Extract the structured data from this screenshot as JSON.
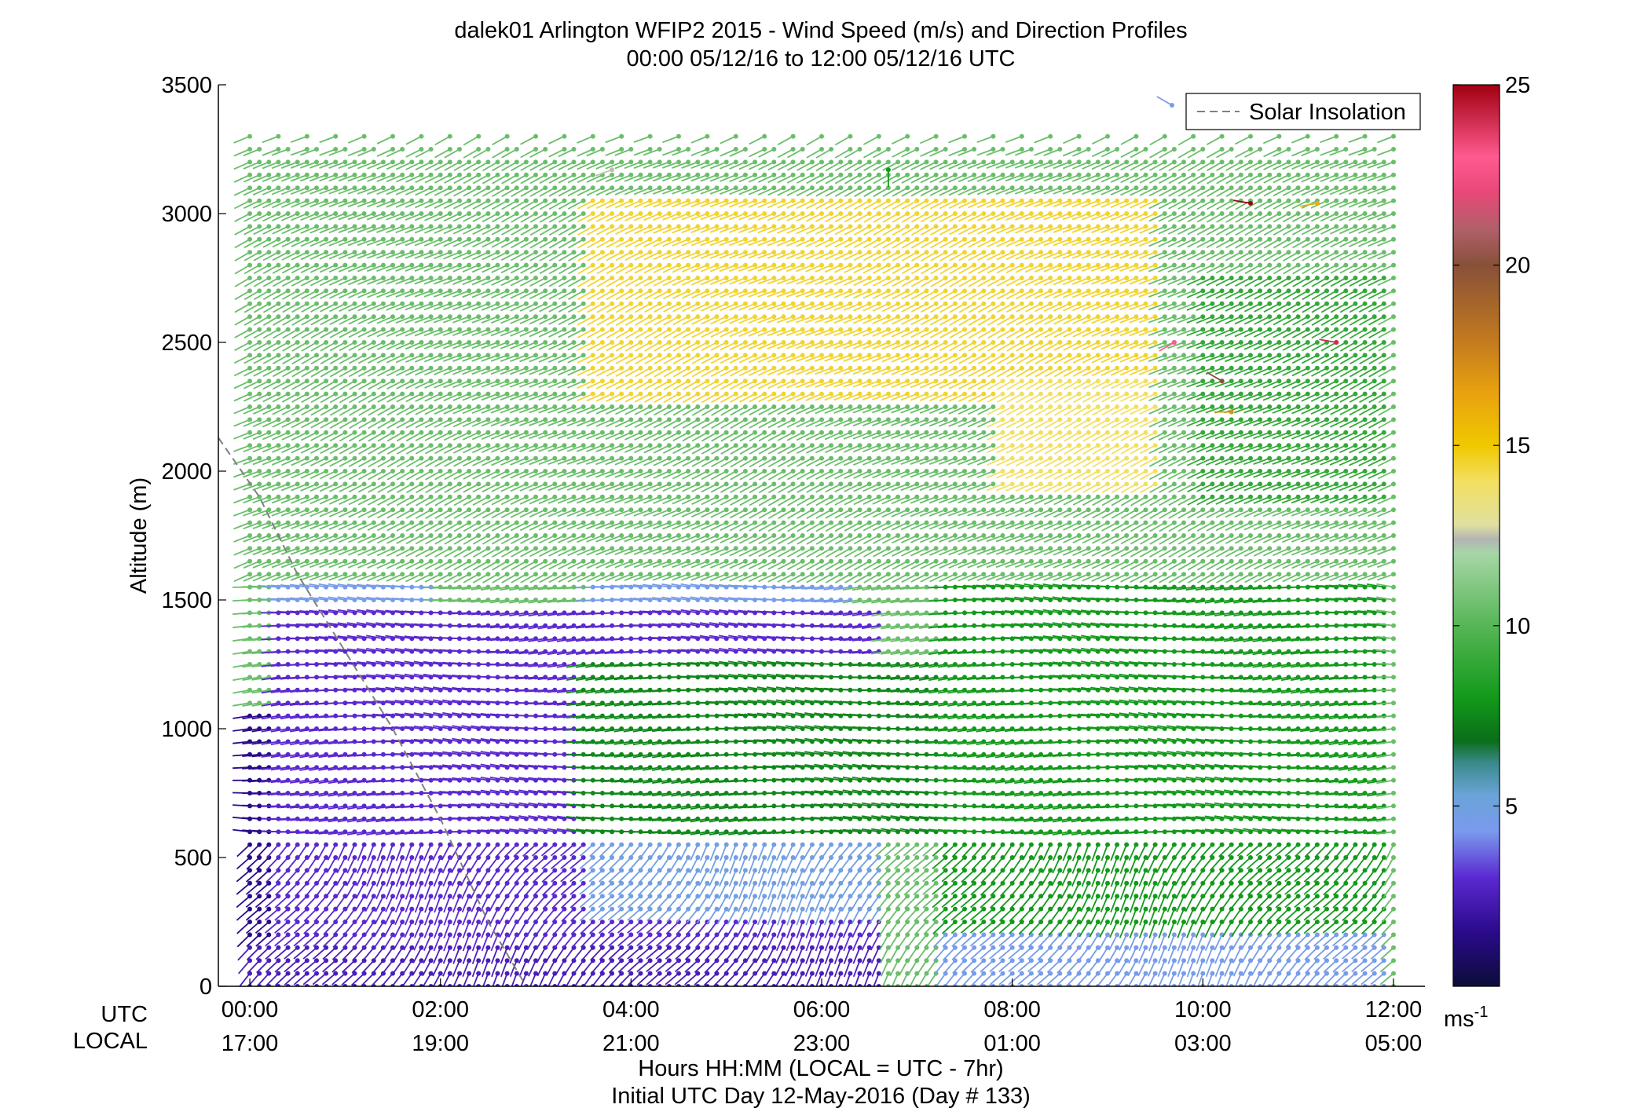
{
  "chart_data": {
    "type": "wind-barb-profile",
    "title": "dalek01 Arlington WFIP2 2015 - Wind Speed (m/s) and Direction Profiles",
    "subtitle": "00:00 05/12/16 to 12:00 05/12/16  UTC",
    "ylabel": "Altitude (m)",
    "xlabel": "Hours HH:MM  (LOCAL = UTC - 7hr)",
    "xlabel2": "Initial UTC Day 12-May-2016 (Day # 133)",
    "row_utc_label": "UTC",
    "row_local_label": "LOCAL",
    "x_range_hours": [
      -0.33,
      12.33
    ],
    "ylim": [
      0,
      3500
    ],
    "yticks": [
      0,
      500,
      1000,
      1500,
      2000,
      2500,
      3000,
      3500
    ],
    "yticks_labels": [
      "0",
      "500",
      "1000",
      "1500",
      "2000",
      "2500",
      "3000",
      "3500"
    ],
    "xticks_hours": [
      0,
      2,
      4,
      6,
      8,
      10,
      12
    ],
    "xticks_utc": [
      "00:00",
      "02:00",
      "04:00",
      "06:00",
      "08:00",
      "10:00",
      "12:00"
    ],
    "xticks_local": [
      "17:00",
      "19:00",
      "21:00",
      "23:00",
      "01:00",
      "03:00",
      "05:00"
    ],
    "legend": {
      "entries": [
        "Solar Insolation"
      ],
      "placement": "top-right",
      "line_color": "#808080",
      "line_style": "dashed"
    },
    "colorbar": {
      "min": 0,
      "max": 25,
      "ticks": [
        5,
        10,
        15,
        20,
        25
      ],
      "tick_labels": [
        "5",
        "10",
        "15",
        "20",
        "25"
      ],
      "unit_label": "ms",
      "unit_exponent": "-1",
      "stops": [
        {
          "v": 0,
          "c": "#0c0c3a"
        },
        {
          "v": 1.5,
          "c": "#2a0a8a"
        },
        {
          "v": 3,
          "c": "#5a28d0"
        },
        {
          "v": 4.3,
          "c": "#7a9aee"
        },
        {
          "v": 5.3,
          "c": "#6aa4d8"
        },
        {
          "v": 6.2,
          "c": "#3a8a8a"
        },
        {
          "v": 6.8,
          "c": "#0a6e1a"
        },
        {
          "v": 8,
          "c": "#129a1a"
        },
        {
          "v": 10,
          "c": "#56b656"
        },
        {
          "v": 12,
          "c": "#a6d6a6"
        },
        {
          "v": 12.4,
          "c": "#b4b4b4"
        },
        {
          "v": 12.8,
          "c": "#e0e0a0"
        },
        {
          "v": 14,
          "c": "#f2e060"
        },
        {
          "v": 15,
          "c": "#f0c800"
        },
        {
          "v": 16.5,
          "c": "#e8a010"
        },
        {
          "v": 18,
          "c": "#c07820"
        },
        {
          "v": 20,
          "c": "#885038"
        },
        {
          "v": 21,
          "c": "#b0606a"
        },
        {
          "v": 22,
          "c": "#e84878"
        },
        {
          "v": 23,
          "c": "#ff5a90"
        },
        {
          "v": 25,
          "c": "#a00010"
        }
      ]
    },
    "solar_insolation_line": {
      "hours": [
        -0.33,
        0.1,
        0.5,
        1.0,
        1.5,
        2.0,
        2.5,
        2.9
      ],
      "altitude": [
        2130,
        1900,
        1600,
        1300,
        1000,
        650,
        250,
        0
      ]
    },
    "profile_time_step_hours": 0.1,
    "profile_height_step_m": 50,
    "profile_top_m": 3300,
    "direction_regimes": [
      {
        "h0": -9,
        "h1": 600,
        "dir_low": 200,
        "dir_high": 230
      },
      {
        "h0": 600,
        "h1": 1600,
        "dir_low": 260,
        "dir_high": 280
      },
      {
        "h0": 1600,
        "h1": 3400,
        "dir_low": 240,
        "dir_high": 250
      }
    ],
    "speed_regions": [
      {
        "t0": 0.0,
        "t1": 0.6,
        "z0": 0,
        "z1": 1100,
        "speed": 1.5
      },
      {
        "t0": 0.0,
        "t1": 6.7,
        "z0": 0,
        "z1": 200,
        "speed": 2.5
      },
      {
        "t0": 0.3,
        "t1": 6.7,
        "z0": 200,
        "z1": 1500,
        "speed": 3.0
      },
      {
        "t0": 0.3,
        "t1": 2.0,
        "z0": 1500,
        "z1": 1600,
        "speed": 4.5
      },
      {
        "t0": 3.6,
        "t1": 6.4,
        "z0": 1500,
        "z1": 1800,
        "speed": 4.5
      },
      {
        "t0": 3.6,
        "t1": 6.7,
        "z0": 300,
        "z1": 1300,
        "speed": 4.8
      },
      {
        "t0": 3.5,
        "t1": 7.3,
        "z0": 600,
        "z1": 1300,
        "speed": 7.5
      },
      {
        "t0": 7.3,
        "t1": 12.0,
        "z0": 0,
        "z1": 250,
        "speed": 4.5
      },
      {
        "t0": 7.3,
        "t1": 12.0,
        "z0": 250,
        "z1": 2000,
        "speed": 8.0
      },
      {
        "t0": 0.0,
        "t1": 12.0,
        "z0": 1600,
        "z1": 3300,
        "speed": 10.5
      },
      {
        "t0": 3.6,
        "t1": 9.6,
        "z0": 2300,
        "z1": 3100,
        "speed": 14.5
      },
      {
        "t0": 7.9,
        "t1": 9.6,
        "z0": 1950,
        "z1": 2400,
        "speed": 14.0
      },
      {
        "t0": 10.0,
        "t1": 12.0,
        "z0": 1900,
        "z1": 2800,
        "speed": 9.0
      }
    ],
    "default_speed": 10.5,
    "isolated_barbs": [
      {
        "t": 6.7,
        "z": 3170,
        "speed": 8,
        "dir": 180
      },
      {
        "t": 10.5,
        "z": 3040,
        "speed": 25,
        "dir": 280
      },
      {
        "t": 11.2,
        "z": 3040,
        "speed": 16,
        "dir": 260
      },
      {
        "t": 9.7,
        "z": 2500,
        "speed": 23,
        "dir": 240
      },
      {
        "t": 10.2,
        "z": 2350,
        "speed": 20,
        "dir": 300
      },
      {
        "t": 11.4,
        "z": 2500,
        "speed": 24,
        "dir": 280
      },
      {
        "t": 3.8,
        "z": 3170,
        "speed": 12.5,
        "dir": 250
      },
      {
        "t": 10.3,
        "z": 2230,
        "speed": 17,
        "dir": 270
      }
    ],
    "legend_sample_barb": {
      "speed": 4.5,
      "dir": 300
    }
  }
}
